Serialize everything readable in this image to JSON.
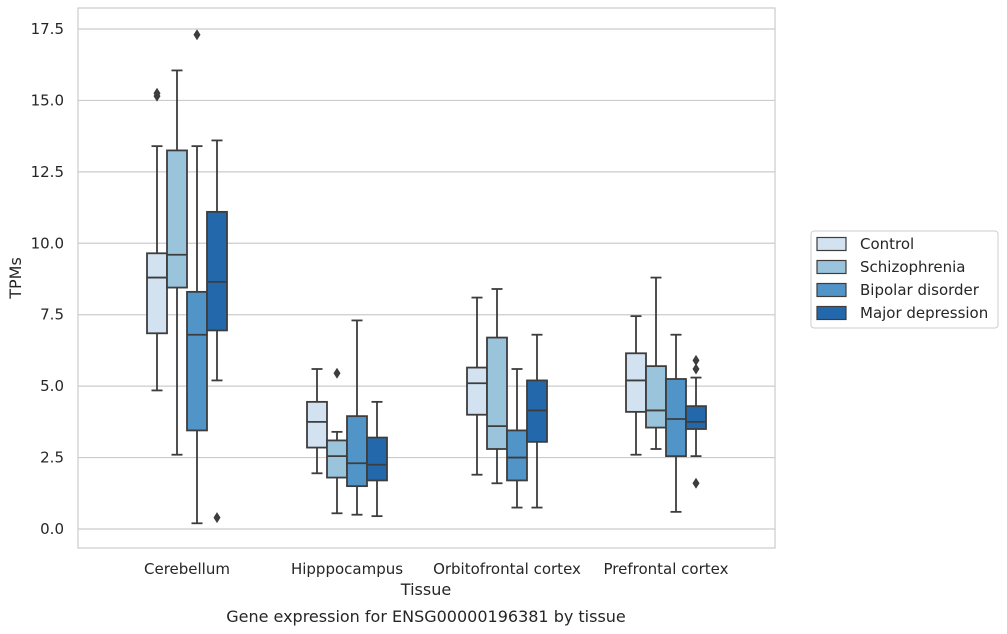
{
  "chart_data": {
    "type": "box",
    "xlabel": "Tissue",
    "ylabel": "TPMs",
    "caption": "Gene expression for ENSG00000196381 by tissue",
    "categories": [
      "Cerebellum",
      "Hipppocampus",
      "Orbitofrontal cortex",
      "Prefrontal cortex"
    ],
    "ylim": [
      -0.6,
      18.2
    ],
    "yticks": [
      0.0,
      2.5,
      5.0,
      7.5,
      10.0,
      12.5,
      15.0,
      17.5
    ],
    "ytick_labels": [
      "0.0",
      "2.5",
      "5.0",
      "7.5",
      "10.0",
      "12.5",
      "15.0",
      "17.5"
    ],
    "grid": "horizontal",
    "legend_position": "right",
    "series": [
      {
        "name": "Control",
        "color": "#d2e2f1",
        "boxes": [
          {
            "whislo": 4.85,
            "q1": 6.85,
            "med": 8.8,
            "q3": 9.65,
            "whishi": 13.4,
            "fliers": [
              15.15,
              15.25
            ]
          },
          {
            "whislo": 1.95,
            "q1": 2.85,
            "med": 3.75,
            "q3": 4.45,
            "whishi": 5.6,
            "fliers": []
          },
          {
            "whislo": 1.9,
            "q1": 4.0,
            "med": 5.1,
            "q3": 5.65,
            "whishi": 8.1,
            "fliers": []
          },
          {
            "whislo": 2.6,
            "q1": 4.1,
            "med": 5.2,
            "q3": 6.15,
            "whishi": 7.45,
            "fliers": []
          }
        ]
      },
      {
        "name": "Schizophrenia",
        "color": "#9ac3dc",
        "boxes": [
          {
            "whislo": 2.6,
            "q1": 8.45,
            "med": 9.6,
            "q3": 13.25,
            "whishi": 16.05,
            "fliers": []
          },
          {
            "whislo": 0.55,
            "q1": 1.8,
            "med": 2.55,
            "q3": 3.1,
            "whishi": 3.4,
            "fliers": [
              5.45
            ]
          },
          {
            "whislo": 1.6,
            "q1": 2.8,
            "med": 3.6,
            "q3": 6.7,
            "whishi": 8.4,
            "fliers": []
          },
          {
            "whislo": 2.8,
            "q1": 3.55,
            "med": 4.15,
            "q3": 5.7,
            "whishi": 8.8,
            "fliers": []
          }
        ]
      },
      {
        "name": "Bipolar disorder",
        "color": "#5194c7",
        "boxes": [
          {
            "whislo": 0.2,
            "q1": 3.45,
            "med": 6.8,
            "q3": 8.3,
            "whishi": 13.4,
            "fliers": [
              17.3
            ]
          },
          {
            "whislo": 0.5,
            "q1": 1.5,
            "med": 2.3,
            "q3": 3.95,
            "whishi": 7.3,
            "fliers": []
          },
          {
            "whislo": 0.75,
            "q1": 1.7,
            "med": 2.5,
            "q3": 3.45,
            "whishi": 5.6,
            "fliers": []
          },
          {
            "whislo": 0.6,
            "q1": 2.55,
            "med": 3.85,
            "q3": 5.25,
            "whishi": 6.8,
            "fliers": []
          }
        ]
      },
      {
        "name": "Major depression",
        "color": "#2268ab",
        "boxes": [
          {
            "whislo": 5.2,
            "q1": 6.95,
            "med": 8.65,
            "q3": 11.1,
            "whishi": 13.6,
            "fliers": [
              0.4
            ]
          },
          {
            "whislo": 0.45,
            "q1": 1.7,
            "med": 2.25,
            "q3": 3.2,
            "whishi": 4.45,
            "fliers": []
          },
          {
            "whislo": 0.75,
            "q1": 3.05,
            "med": 4.15,
            "q3": 5.2,
            "whishi": 6.8,
            "fliers": []
          },
          {
            "whislo": 2.55,
            "q1": 3.5,
            "med": 3.75,
            "q3": 4.3,
            "whishi": 5.3,
            "fliers": [
              1.6,
              5.6,
              5.9
            ]
          }
        ]
      }
    ]
  }
}
